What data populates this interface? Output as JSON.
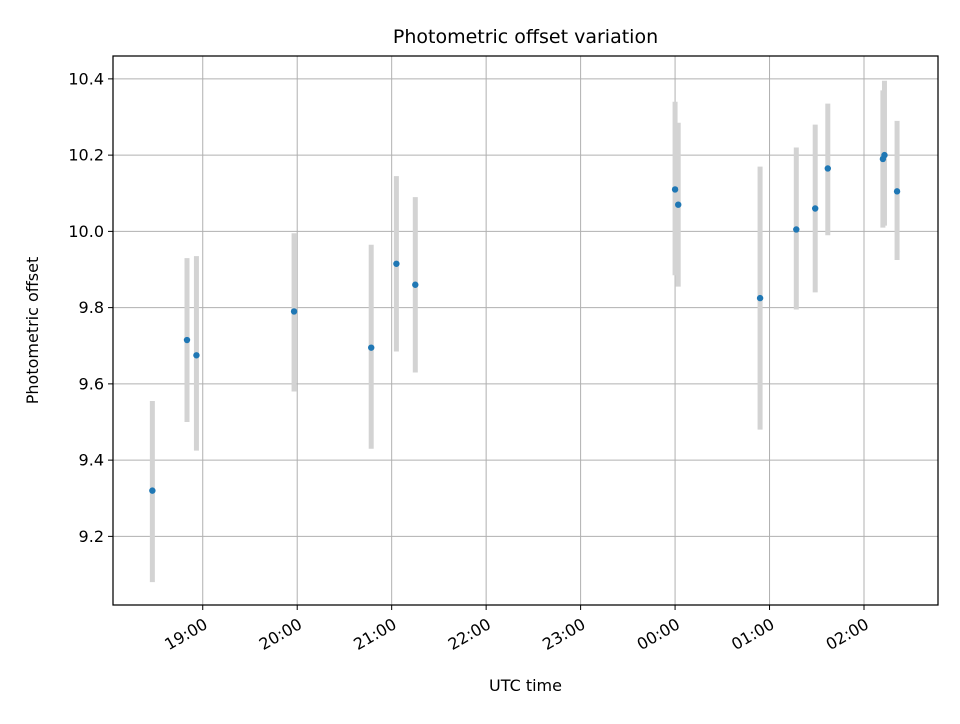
{
  "chart_data": {
    "type": "scatter",
    "title": "Photometric offset variation",
    "xlabel": "UTC time",
    "ylabel": "Photometric offset",
    "x_axis": "time",
    "xlim": [
      "18:03",
      "02:47"
    ],
    "ylim": [
      9.02,
      10.46
    ],
    "xticks": [
      {
        "time": "19:00",
        "label": "19:00"
      },
      {
        "time": "20:00",
        "label": "20:00"
      },
      {
        "time": "21:00",
        "label": "21:00"
      },
      {
        "time": "22:00",
        "label": "22:00"
      },
      {
        "time": "23:00",
        "label": "23:00"
      },
      {
        "time": "00:00",
        "label": "00:00"
      },
      {
        "time": "01:00",
        "label": "01:00"
      },
      {
        "time": "02:00",
        "label": "02:00"
      }
    ],
    "yticks": [
      {
        "value": 9.2,
        "label": "9.2"
      },
      {
        "value": 9.4,
        "label": "9.4"
      },
      {
        "value": 9.6,
        "label": "9.6"
      },
      {
        "value": 9.8,
        "label": "9.8"
      },
      {
        "value": 10.0,
        "label": "10.0"
      },
      {
        "value": 10.2,
        "label": "10.2"
      },
      {
        "value": 10.4,
        "label": "10.4"
      }
    ],
    "grid": true,
    "colors": {
      "point": "#1f77b4",
      "errorbar": "#d3d3d3",
      "grid": "#b0b0b0"
    },
    "points": [
      {
        "x": "18:28",
        "y": 9.32,
        "low": 9.08,
        "high": 9.555
      },
      {
        "x": "18:50",
        "y": 9.715,
        "low": 9.5,
        "high": 9.93
      },
      {
        "x": "18:56",
        "y": 9.675,
        "low": 9.425,
        "high": 9.935
      },
      {
        "x": "19:58",
        "y": 9.79,
        "low": 9.58,
        "high": 9.995
      },
      {
        "x": "20:47",
        "y": 9.695,
        "low": 9.43,
        "high": 9.965
      },
      {
        "x": "21:03",
        "y": 9.915,
        "low": 9.685,
        "high": 10.145
      },
      {
        "x": "21:15",
        "y": 9.86,
        "low": 9.63,
        "high": 10.09
      },
      {
        "x": "00:00",
        "y": 10.11,
        "low": 9.885,
        "high": 10.34
      },
      {
        "x": "00:02",
        "y": 10.07,
        "low": 9.855,
        "high": 10.285
      },
      {
        "x": "00:54",
        "y": 9.825,
        "low": 9.48,
        "high": 10.17
      },
      {
        "x": "01:17",
        "y": 10.005,
        "low": 9.795,
        "high": 10.22
      },
      {
        "x": "01:29",
        "y": 10.06,
        "low": 9.84,
        "high": 10.28
      },
      {
        "x": "01:37",
        "y": 10.165,
        "low": 9.99,
        "high": 10.335
      },
      {
        "x": "02:12",
        "y": 10.19,
        "low": 10.01,
        "high": 10.37
      },
      {
        "x": "02:13",
        "y": 10.2,
        "low": 10.015,
        "high": 10.395
      },
      {
        "x": "02:21",
        "y": 10.105,
        "low": 9.925,
        "high": 10.29
      }
    ]
  }
}
